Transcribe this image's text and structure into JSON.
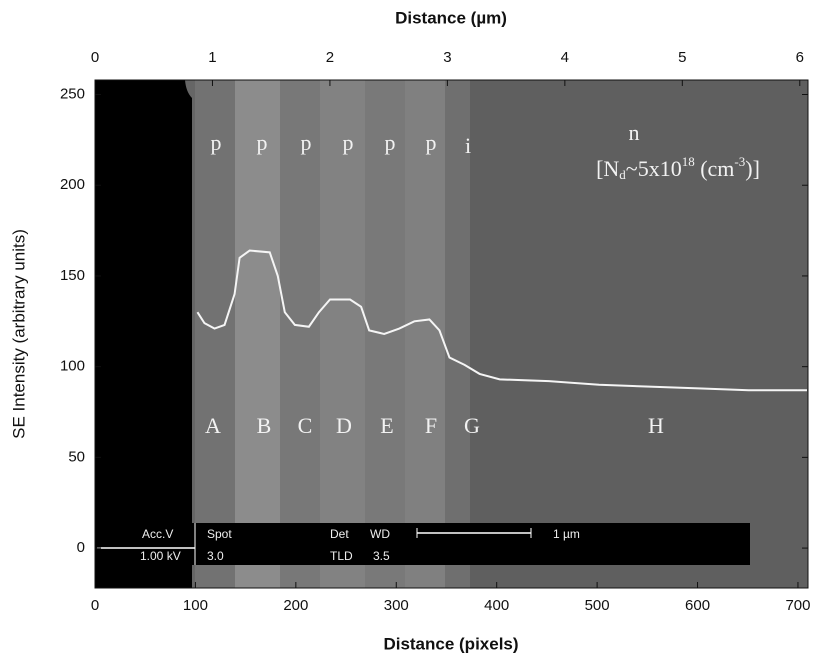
{
  "chart_data": {
    "type": "line",
    "x_label": "Distance (pixels)",
    "x2_label": "Distance (µm)",
    "y_label": "SE Intensity (arbitrary units)",
    "xlim": [
      0,
      710
    ],
    "xticks": [
      0,
      100,
      200,
      300,
      400,
      500,
      600,
      700
    ],
    "x2lim": [
      0,
      6.07
    ],
    "x2ticks": [
      0,
      1,
      2,
      3,
      4,
      5,
      6
    ],
    "ylim": [
      -22,
      258
    ],
    "yticks": [
      0,
      50,
      100,
      150,
      200,
      250
    ],
    "series": [
      {
        "name": "SE intensity",
        "color": "#f5f5f5",
        "x": [
          102,
          109,
          119,
          129,
          139,
          144,
          154,
          174,
          182,
          189,
          199,
          213,
          223,
          234,
          254,
          265,
          273,
          288,
          303,
          318,
          333,
          343,
          353,
          368,
          383,
          403,
          452,
          502,
          552,
          601,
          651,
          709
        ],
        "values": [
          130,
          124,
          121,
          123,
          140,
          160,
          164,
          163,
          150,
          130,
          123,
          122,
          130,
          137,
          137,
          133,
          120,
          118,
          121,
          125,
          126,
          120,
          105,
          101,
          96,
          93,
          92,
          90,
          89,
          88,
          87,
          87
        ]
      }
    ],
    "region_types": [
      "p",
      "p",
      "p",
      "p",
      "p",
      "p",
      "i",
      "n"
    ],
    "region_letters": [
      "A",
      "B",
      "C",
      "D",
      "E",
      "F",
      "G",
      "H"
    ],
    "doping": [
      "[N",
      "d",
      "~5x10",
      "18",
      " (cm",
      "-3",
      ")]"
    ],
    "scale_bar": [
      "Acc.V",
      "Spot",
      "Det",
      "WD",
      "1 µm",
      "1.00 kV",
      "3.0",
      "TLD",
      "3.5"
    ]
  }
}
